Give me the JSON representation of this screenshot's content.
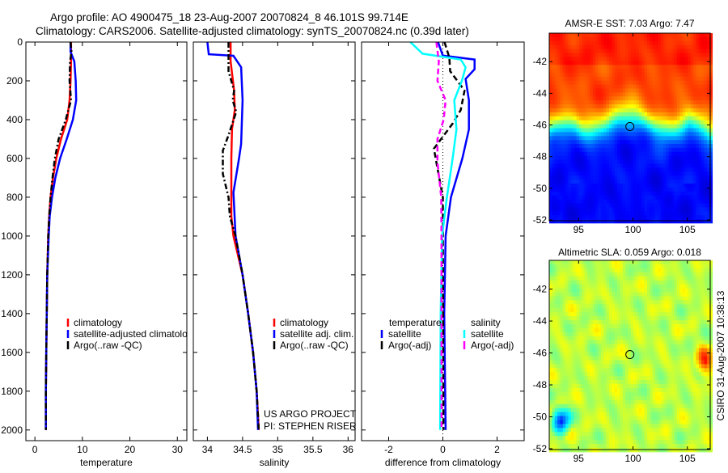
{
  "header": {
    "title_line1": "Argo profile: AO 4900475_18 23-Aug-2007 20070824_8 46.101S 99.714E",
    "title_line2": "Climatology: CARS2006. Satellite-adjusted climatology: synTS_20070824.nc (0.39d later)"
  },
  "colors": {
    "red": "#ff0000",
    "blue": "#0000ff",
    "black": "#000000",
    "cyan": "#00ffff",
    "magenta": "#ff00ff"
  },
  "annotations": {
    "project": "US ARGO PROJECT",
    "pi": "PI: STEPHEN RISER",
    "stamp": "CSIRO 31-Aug-2007 10:38:13"
  },
  "chart_data": [
    {
      "type": "line",
      "id": "temperature",
      "xlabel": "temperature",
      "ylabel": "",
      "xlim": [
        -1.9,
        32
      ],
      "ylim": [
        0,
        2055
      ],
      "y_reversed": true,
      "xticks": [
        0,
        10,
        20,
        30
      ],
      "yticks": [
        0,
        200,
        400,
        600,
        800,
        1000,
        1200,
        1400,
        1600,
        1800,
        2000
      ],
      "legend": {
        "placement": "lower-middle",
        "entries": [
          "climatology",
          "satellite-adjusted climatology",
          "Argo(..raw -QC)"
        ]
      },
      "series": [
        {
          "name": "climatology",
          "color": "red",
          "style": "solid",
          "depth": [
            0,
            50,
            100,
            200,
            300,
            400,
            500,
            600,
            700,
            800,
            900,
            1000,
            1200,
            1400,
            1600,
            1800,
            2000
          ],
          "values": [
            7.6,
            7.6,
            7.6,
            7.5,
            7.3,
            6.8,
            5.5,
            4.5,
            3.8,
            3.3,
            3.0,
            2.8,
            2.6,
            2.5,
            2.4,
            2.3,
            2.3
          ]
        },
        {
          "name": "satellite-adjusted climatology",
          "color": "blue",
          "style": "solid",
          "depth": [
            0,
            50,
            100,
            200,
            300,
            400,
            500,
            600,
            700,
            800,
            900,
            1000,
            1200,
            1400,
            1600,
            1800,
            2000
          ],
          "values": [
            7.5,
            7.5,
            8.3,
            8.6,
            8.7,
            8.0,
            6.7,
            5.3,
            4.3,
            3.6,
            3.1,
            2.9,
            2.6,
            2.5,
            2.4,
            2.3,
            2.3
          ]
        },
        {
          "name": "Argo(..raw -QC)",
          "color": "black",
          "style": "dashdot",
          "depth": [
            0,
            50,
            100,
            200,
            300,
            400,
            500,
            600,
            700,
            800,
            900,
            1000,
            1200,
            1400,
            1600,
            1800,
            2000
          ],
          "values": [
            7.5,
            7.7,
            7.4,
            7.3,
            7.6,
            6.5,
            5.0,
            4.2,
            3.7,
            3.3,
            3.0,
            2.8,
            2.6,
            2.5,
            2.4,
            2.3,
            2.3
          ]
        }
      ]
    },
    {
      "type": "line",
      "id": "salinity",
      "xlabel": "salinity",
      "xlim": [
        33.8,
        36.1
      ],
      "ylim": [
        0,
        2055
      ],
      "y_reversed": true,
      "xticks": [
        34,
        34.5,
        35,
        35.5,
        36
      ],
      "xticklabels": [
        "34",
        "34.5",
        "35",
        "35.5",
        "36"
      ],
      "legend": {
        "placement": "lower-right",
        "entries": [
          "climatology",
          "satellite adj. clim.",
          "Argo(..raw -QC)"
        ]
      },
      "series": [
        {
          "name": "climatology",
          "color": "red",
          "style": "solid",
          "depth": [
            0,
            100,
            250,
            350,
            450,
            600,
            900,
            1000,
            1200,
            1400,
            1600,
            1800,
            2000
          ],
          "values": [
            34.33,
            34.33,
            34.38,
            34.39,
            34.35,
            34.34,
            34.34,
            34.37,
            34.5,
            34.58,
            34.65,
            34.7,
            34.73
          ]
        },
        {
          "name": "satellite adj. clim.",
          "color": "blue",
          "style": "solid",
          "depth": [
            0,
            63,
            71,
            130,
            300,
            525,
            600,
            775,
            1000,
            1200,
            1400,
            1600,
            1800,
            2000
          ],
          "values": [
            34.0,
            34.02,
            34.37,
            34.48,
            34.5,
            34.48,
            34.45,
            34.37,
            34.4,
            34.5,
            34.58,
            34.65,
            34.7,
            34.72
          ]
        },
        {
          "name": "Argo(..raw -QC)",
          "color": "black",
          "style": "dashdot",
          "depth": [
            0,
            150,
            250,
            300,
            360,
            480,
            560,
            680,
            800,
            900,
            1000,
            1200,
            1400,
            1600,
            1800,
            2000
          ],
          "values": [
            34.3,
            34.3,
            34.38,
            34.36,
            34.41,
            34.3,
            34.22,
            34.22,
            34.3,
            34.32,
            34.4,
            34.5,
            34.58,
            34.65,
            34.7,
            34.73
          ]
        }
      ]
    },
    {
      "type": "line",
      "id": "difference",
      "xlabel": "difference from climatology",
      "xlim": [
        -3.0,
        3.0
      ],
      "ylim": [
        0,
        2055
      ],
      "y_reversed": true,
      "xticks": [
        -2,
        0,
        2
      ],
      "zero_line": true,
      "legend": {
        "placement": "lower-middle",
        "headers": [
          "temperature",
          "salinity"
        ],
        "entries": [
          "satellite",
          "Argo(-adj)",
          "satellite",
          "Argo(-adj)"
        ]
      },
      "series": [
        {
          "name": "temperature satellite",
          "color": "blue",
          "style": "solid",
          "depth": [
            0,
            70,
            90,
            140,
            190,
            300,
            450,
            600,
            800,
            1000,
            1400,
            2000
          ],
          "values": [
            -0.18,
            0,
            1.17,
            1.17,
            0.84,
            0.96,
            0.96,
            0.72,
            0.3,
            0.1,
            0.05,
            0.1
          ]
        },
        {
          "name": "temperature Argo(-adj)",
          "color": "black",
          "style": "dashed",
          "depth": [
            0,
            80,
            150,
            250,
            350,
            420,
            550,
            650,
            800,
            1000,
            2000
          ],
          "values": [
            0.06,
            0.24,
            0.27,
            0.8,
            0.66,
            0.36,
            -0.33,
            -0.2,
            0,
            0.0,
            0.02
          ]
        },
        {
          "name": "salinity satellite",
          "color": "cyan",
          "style": "solid",
          "depth": [
            0,
            60,
            90,
            130,
            200,
            300,
            450,
            600,
            800,
            1000,
            1400,
            2000
          ],
          "values": [
            -1.2,
            -0.75,
            0.66,
            0.84,
            0.7,
            0.42,
            0.5,
            0.36,
            0.15,
            -0.03,
            -0.08,
            -0.1
          ]
        },
        {
          "name": "salinity Argo(-adj)",
          "color": "magenta",
          "style": "dashed",
          "depth": [
            0,
            100,
            200,
            300,
            400,
            500,
            620,
            800,
            1000,
            2000
          ],
          "values": [
            -0.24,
            -0.15,
            -0.2,
            0.1,
            0.03,
            -0.2,
            -0.2,
            -0.06,
            -0.05,
            -0.05
          ]
        }
      ]
    },
    {
      "type": "heatmap",
      "id": "sst-map",
      "title": "AMSR-E SST: 7.03 Argo: 7.47",
      "xlim": [
        92.3,
        107.1
      ],
      "ylim": [
        -52.05,
        -40.2
      ],
      "xticks": [
        95,
        100,
        105
      ],
      "yticks": [
        -42,
        -44,
        -46,
        -48,
        -50,
        -52
      ],
      "marker": {
        "lon": 99.714,
        "lat": -46.101
      },
      "colormap": "jet"
    },
    {
      "type": "heatmap",
      "id": "sla-map",
      "title": "Altimetric SLA: 0.059 Argo: 0.018",
      "xlim": [
        92.3,
        107.1
      ],
      "ylim": [
        -52.05,
        -40.2
      ],
      "xticks": [
        95,
        100,
        105
      ],
      "yticks": [
        -42,
        -44,
        -46,
        -48,
        -50,
        -52
      ],
      "marker": {
        "lon": 99.714,
        "lat": -46.101
      },
      "colormap": "jet"
    }
  ]
}
